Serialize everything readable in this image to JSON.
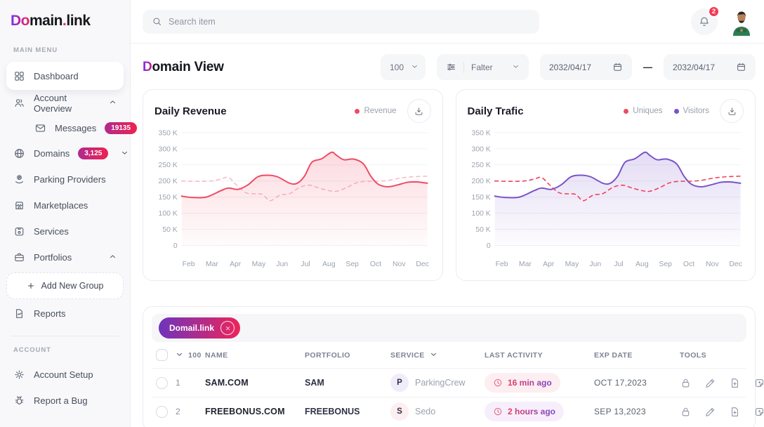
{
  "app": {
    "logo_accent": "Do",
    "logo_main": "main",
    "logo_dot": ".",
    "logo_tail": "link"
  },
  "sidebar": {
    "main_menu_label": "MAIN MENU",
    "account_label": "ACCOUNT",
    "items": [
      {
        "label": "Dashboard"
      },
      {
        "label": "Account Overview"
      },
      {
        "label": "Messages",
        "badge": "19135"
      },
      {
        "label": "Domains",
        "badge": "3,125"
      },
      {
        "label": "Parking Providers"
      },
      {
        "label": "Marketplaces"
      },
      {
        "label": "Services"
      },
      {
        "label": "Portfolios"
      },
      {
        "label": "Add New Group"
      },
      {
        "label": "Reports"
      },
      {
        "label": "Account Setup"
      },
      {
        "label": "Report a Bug"
      }
    ]
  },
  "topbar": {
    "search_placeholder": "Search item",
    "notification_count": "2"
  },
  "page": {
    "title_accent": "D",
    "title_rest": "omain View"
  },
  "controls": {
    "page_size": "100",
    "filter_label": "Falter",
    "date_from": "2032/04/17",
    "date_separator": "—",
    "date_to": "2032/04/17"
  },
  "chart_data": [
    {
      "type": "line",
      "title": "Daily Revenue",
      "unit": "K",
      "ylim": [
        0,
        350
      ],
      "grid": true,
      "legend_position": "top-right",
      "y_ticks": [
        "350 K",
        "300 K",
        "250 K",
        "200 K",
        "150 K",
        "100 K",
        "50 K",
        "0"
      ],
      "x_labels": [
        "Feb",
        "Mar",
        "Apr",
        "May",
        "Jun",
        "Jul",
        "Aug",
        "Sep",
        "Oct",
        "Nov",
        "Dec"
      ],
      "legend": [
        {
          "label": "Revenue",
          "color": "#f04a63"
        }
      ],
      "series": [
        {
          "name": "",
          "color": "#f8bcc9",
          "dashed": true,
          "area": false,
          "points": [
            [
              0,
              200
            ],
            [
              6,
              199
            ],
            [
              12,
              200
            ],
            [
              16,
              206
            ],
            [
              19,
              211
            ],
            [
              22,
              190
            ],
            [
              26,
              164
            ],
            [
              30,
              160
            ],
            [
              33,
              158
            ],
            [
              36,
              139
            ],
            [
              40,
              156
            ],
            [
              44,
              161
            ],
            [
              48,
              180
            ],
            [
              52,
              187
            ],
            [
              56,
              178
            ],
            [
              60,
              170
            ],
            [
              63,
              168
            ],
            [
              67,
              179
            ],
            [
              71,
              194
            ],
            [
              75,
              199
            ],
            [
              79,
              199
            ],
            [
              84,
              202
            ],
            [
              89,
              209
            ],
            [
              94,
              213
            ],
            [
              100,
              215
            ]
          ]
        },
        {
          "name": "Revenue",
          "color": "#f04a63",
          "dashed": false,
          "area": true,
          "points": [
            [
              0,
              153
            ],
            [
              4,
              149
            ],
            [
              10,
              150
            ],
            [
              16,
              170
            ],
            [
              19,
              178
            ],
            [
              23,
              174
            ],
            [
              27,
              188
            ],
            [
              31,
              213
            ],
            [
              35,
              218
            ],
            [
              39,
              213
            ],
            [
              44,
              193
            ],
            [
              47,
              193
            ],
            [
              50,
              215
            ],
            [
              53,
              258
            ],
            [
              57,
              269
            ],
            [
              61,
              289
            ],
            [
              63,
              280
            ],
            [
              66,
              266
            ],
            [
              70,
              268
            ],
            [
              74,
              253
            ],
            [
              77,
              215
            ],
            [
              80,
              190
            ],
            [
              84,
              182
            ],
            [
              88,
              188
            ],
            [
              92,
              196
            ],
            [
              96,
              197
            ],
            [
              100,
              193
            ]
          ]
        }
      ]
    },
    {
      "type": "line",
      "title": "Daily Trafic",
      "unit": "K",
      "ylim": [
        0,
        350
      ],
      "grid": true,
      "legend_position": "top-right",
      "y_ticks": [
        "350 K",
        "300 K",
        "250 K",
        "200 K",
        "150 K",
        "100 K",
        "50 K",
        "0"
      ],
      "x_labels": [
        "Feb",
        "Mar",
        "Apr",
        "May",
        "Jun",
        "Jul",
        "Aug",
        "Sep",
        "Oct",
        "Nov",
        "Dec"
      ],
      "legend": [
        {
          "label": "Uniques",
          "color": "#f04a63"
        },
        {
          "label": "Visitors",
          "color": "#7a53c9"
        }
      ],
      "series": [
        {
          "name": "Visitors",
          "color": "#7a53c9",
          "dashed": false,
          "area": true,
          "points": [
            [
              0,
              153
            ],
            [
              4,
              149
            ],
            [
              10,
              150
            ],
            [
              16,
              170
            ],
            [
              19,
              178
            ],
            [
              23,
              174
            ],
            [
              27,
              188
            ],
            [
              31,
              213
            ],
            [
              35,
              218
            ],
            [
              39,
              213
            ],
            [
              44,
              193
            ],
            [
              47,
              193
            ],
            [
              50,
              215
            ],
            [
              53,
              258
            ],
            [
              57,
              269
            ],
            [
              61,
              289
            ],
            [
              63,
              280
            ],
            [
              66,
              266
            ],
            [
              70,
              268
            ],
            [
              74,
              253
            ],
            [
              77,
              215
            ],
            [
              80,
              190
            ],
            [
              84,
              182
            ],
            [
              88,
              188
            ],
            [
              92,
              196
            ],
            [
              96,
              197
            ],
            [
              100,
              193
            ]
          ]
        },
        {
          "name": "Uniques",
          "color": "#ef415e",
          "dashed": true,
          "area": false,
          "points": [
            [
              0,
              200
            ],
            [
              6,
              199
            ],
            [
              12,
              200
            ],
            [
              16,
              206
            ],
            [
              19,
              211
            ],
            [
              22,
              190
            ],
            [
              26,
              164
            ],
            [
              30,
              160
            ],
            [
              33,
              158
            ],
            [
              36,
              139
            ],
            [
              40,
              156
            ],
            [
              44,
              161
            ],
            [
              48,
              180
            ],
            [
              52,
              187
            ],
            [
              56,
              178
            ],
            [
              60,
              170
            ],
            [
              63,
              168
            ],
            [
              67,
              179
            ],
            [
              71,
              194
            ],
            [
              75,
              199
            ],
            [
              79,
              199
            ],
            [
              84,
              202
            ],
            [
              89,
              209
            ],
            [
              94,
              213
            ],
            [
              100,
              215
            ]
          ]
        }
      ]
    }
  ],
  "table": {
    "chip_label": "Domail.link",
    "columns": {
      "count": "100",
      "name": "NAME",
      "portfolio": "PORTFOLIO",
      "service": "SERVICE",
      "last_activity": "LAST ACTIVITY",
      "exp_date": "EXP DATE",
      "tools": "TOOLS"
    },
    "rows": [
      {
        "num": "1",
        "name": "SAM.COM",
        "portfolio": "SAM",
        "service_initial": "P",
        "service_tint": "#f1ecfa",
        "service": "ParkingCrew",
        "last_activity": "16 min ago",
        "activity_tint": "#fdeef2",
        "exp_date": "OCT 17,2023"
      },
      {
        "num": "2",
        "name": "FREEBONUS.COM",
        "portfolio": "FREEBONUS",
        "service_initial": "S",
        "service_tint": "#fdeef0",
        "service": "Sedo",
        "last_activity": "2 hours ago",
        "activity_tint": "#f6effb",
        "exp_date": "SEP 13,2023"
      }
    ]
  }
}
